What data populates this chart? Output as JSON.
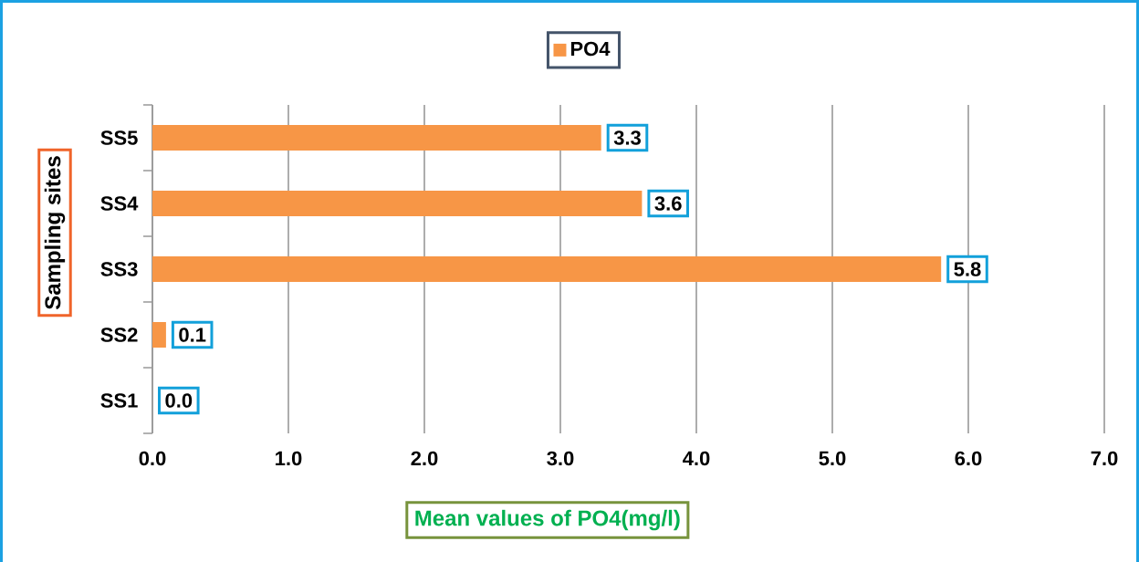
{
  "chart_data": {
    "type": "bar",
    "orientation": "horizontal",
    "categories": [
      "SS5",
      "SS4",
      "SS3",
      "SS2",
      "SS1"
    ],
    "series": [
      {
        "name": "PO4",
        "color": "#f79646",
        "values": [
          3.3,
          3.6,
          5.8,
          0.1,
          0.0
        ],
        "value_labels": [
          "3.3",
          "3.6",
          "5.8",
          "0.1",
          "0.0"
        ]
      }
    ],
    "xlim": [
      0,
      7
    ],
    "xticks": [
      {
        "value": 0,
        "label": "0.0"
      },
      {
        "value": 1,
        "label": "1.0"
      },
      {
        "value": 2,
        "label": "2.0"
      },
      {
        "value": 3,
        "label": "3.0"
      },
      {
        "value": 4,
        "label": "4.0"
      },
      {
        "value": 5,
        "label": "5.0"
      },
      {
        "value": 6,
        "label": "6.0"
      },
      {
        "value": 7,
        "label": "7.0"
      }
    ],
    "xlabel": "Mean values of PO4(mg/l)",
    "ylabel": "Sampling sites",
    "grid": "x",
    "legend": "top",
    "data_labels": true
  }
}
